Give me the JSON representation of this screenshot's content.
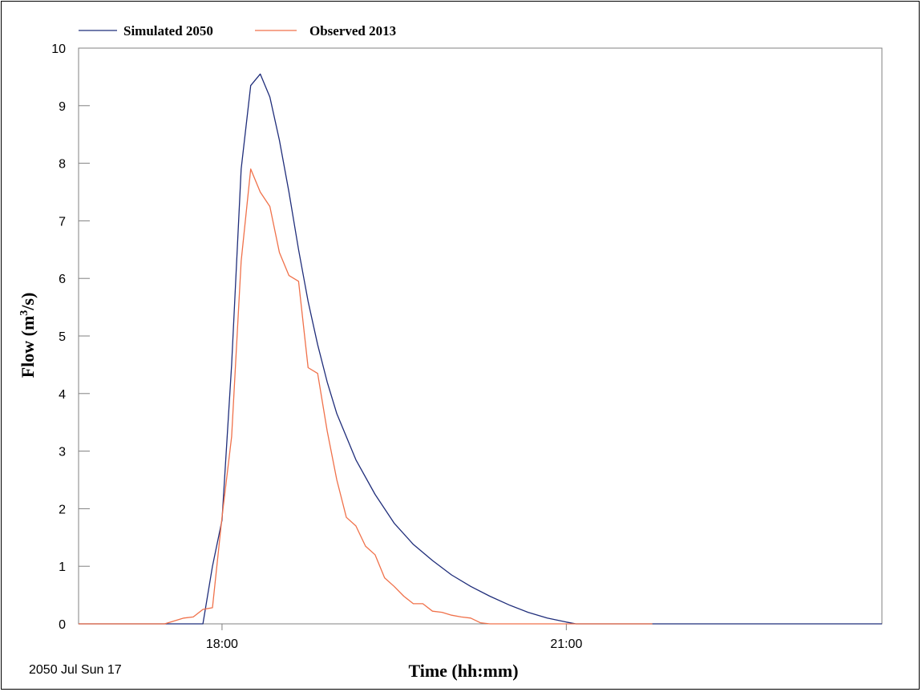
{
  "chart_data": {
    "type": "line",
    "xlabel": "Time (hh:mm)",
    "ylabel_base": "Flow (m",
    "ylabel_sup": "3",
    "ylabel_tail": "/s)",
    "date_label": "2050 Jul Sun 17",
    "xlim": [
      "16:45",
      "23:45"
    ],
    "ylim": [
      0,
      10
    ],
    "y_ticks": [
      0,
      1,
      2,
      3,
      4,
      5,
      6,
      7,
      8,
      9,
      10
    ],
    "x_ticks": [
      "18:00",
      "21:00"
    ],
    "grid": false,
    "legend_position": "top-left",
    "series": [
      {
        "name": "Simulated 2050",
        "color": "#1f2d7a",
        "x": [
          "16:45",
          "17:30",
          "17:50",
          "17:55",
          "18:00",
          "18:05",
          "18:10",
          "18:15",
          "18:20",
          "18:25",
          "18:30",
          "18:35",
          "18:40",
          "18:45",
          "18:50",
          "18:55",
          "19:00",
          "19:10",
          "19:20",
          "19:30",
          "19:40",
          "19:50",
          "20:00",
          "20:10",
          "20:20",
          "20:30",
          "20:40",
          "20:50",
          "21:00",
          "21:05",
          "21:30",
          "22:00",
          "22:30",
          "23:00",
          "23:30",
          "23:45"
        ],
        "values": [
          0,
          0,
          0,
          1.0,
          1.8,
          4.5,
          7.9,
          9.35,
          9.55,
          9.15,
          8.4,
          7.5,
          6.5,
          5.6,
          4.85,
          4.2,
          3.65,
          2.85,
          2.25,
          1.75,
          1.38,
          1.1,
          0.85,
          0.65,
          0.48,
          0.33,
          0.2,
          0.1,
          0.03,
          0,
          0,
          0,
          0,
          0,
          0,
          0
        ]
      },
      {
        "name": "Observed 2013",
        "color": "#f0714a",
        "x": [
          "16:45",
          "17:30",
          "17:40",
          "17:45",
          "17:50",
          "17:55",
          "18:00",
          "18:05",
          "18:10",
          "18:15",
          "18:20",
          "18:25",
          "18:30",
          "18:35",
          "18:40",
          "18:45",
          "18:50",
          "18:55",
          "19:00",
          "19:05",
          "19:10",
          "19:15",
          "19:20",
          "19:25",
          "19:30",
          "19:35",
          "19:40",
          "19:45",
          "19:50",
          "19:55",
          "20:00",
          "20:05",
          "20:10",
          "20:15",
          "20:20",
          "20:30",
          "21:00",
          "21:45"
        ],
        "values": [
          0,
          0,
          0.1,
          0.12,
          0.25,
          0.28,
          1.85,
          3.25,
          6.3,
          7.9,
          7.5,
          7.25,
          6.45,
          6.05,
          5.95,
          4.45,
          4.35,
          3.35,
          2.5,
          1.85,
          1.7,
          1.35,
          1.2,
          0.8,
          0.65,
          0.48,
          0.35,
          0.35,
          0.22,
          0.2,
          0.15,
          0.12,
          0.1,
          0.02,
          0,
          0,
          0,
          0
        ]
      }
    ]
  }
}
